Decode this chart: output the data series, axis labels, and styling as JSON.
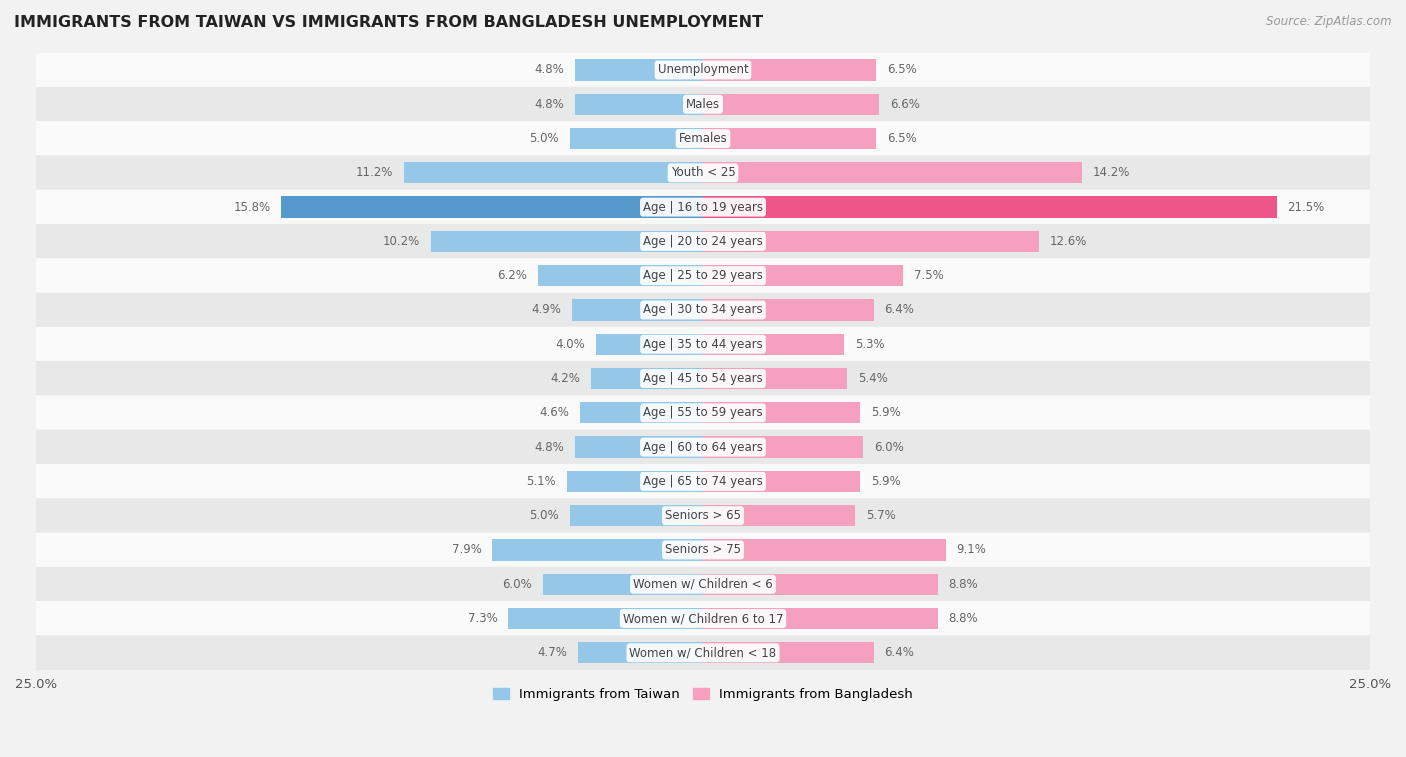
{
  "title": "IMMIGRANTS FROM TAIWAN VS IMMIGRANTS FROM BANGLADESH UNEMPLOYMENT",
  "source": "Source: ZipAtlas.com",
  "categories": [
    "Unemployment",
    "Males",
    "Females",
    "Youth < 25",
    "Age | 16 to 19 years",
    "Age | 20 to 24 years",
    "Age | 25 to 29 years",
    "Age | 30 to 34 years",
    "Age | 35 to 44 years",
    "Age | 45 to 54 years",
    "Age | 55 to 59 years",
    "Age | 60 to 64 years",
    "Age | 65 to 74 years",
    "Seniors > 65",
    "Seniors > 75",
    "Women w/ Children < 6",
    "Women w/ Children 6 to 17",
    "Women w/ Children < 18"
  ],
  "taiwan_values": [
    4.8,
    4.8,
    5.0,
    11.2,
    15.8,
    10.2,
    6.2,
    4.9,
    4.0,
    4.2,
    4.6,
    4.8,
    5.1,
    5.0,
    7.9,
    6.0,
    7.3,
    4.7
  ],
  "bangladesh_values": [
    6.5,
    6.6,
    6.5,
    14.2,
    21.5,
    12.6,
    7.5,
    6.4,
    5.3,
    5.4,
    5.9,
    6.0,
    5.9,
    5.7,
    9.1,
    8.8,
    8.8,
    6.4
  ],
  "taiwan_color": "#94c7e8",
  "bangladesh_color": "#f5a0be",
  "taiwan_highlight_color": "#5599cc",
  "bangladesh_highlight_color": "#ee5588",
  "highlight_row": 4,
  "xlim": 25.0,
  "bg_color": "#f2f2f2",
  "row_bg_light": "#fafafa",
  "row_bg_dark": "#e8e8e8",
  "legend_taiwan": "Immigrants from Taiwan",
  "legend_bangladesh": "Immigrants from Bangladesh"
}
